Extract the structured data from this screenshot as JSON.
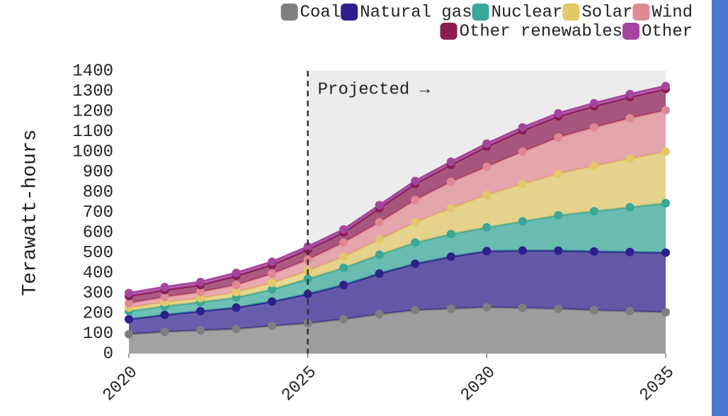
{
  "chart_data": {
    "type": "stacked_area",
    "y_label": "Terawatt-hours",
    "annotation": "Projected →",
    "projection_start": 2025,
    "x": [
      2020,
      2021,
      2022,
      2023,
      2024,
      2025,
      2026,
      2027,
      2028,
      2029,
      2030,
      2031,
      2032,
      2033,
      2034,
      2035
    ],
    "xlim": [
      2020,
      2035
    ],
    "xticks": [
      2020,
      2025,
      2030,
      2035
    ],
    "ylim": [
      0,
      1400
    ],
    "yticks": [
      0,
      100,
      200,
      300,
      400,
      500,
      600,
      700,
      800,
      900,
      1000,
      1100,
      1200,
      1300,
      1400
    ],
    "series": [
      {
        "name": "Coal",
        "color": "#7f7f7f",
        "values": [
          96,
          108,
          115,
          122,
          137,
          150,
          170,
          195,
          215,
          222,
          230,
          226,
          222,
          215,
          210,
          205
        ]
      },
      {
        "name": "Natural gas",
        "color": "#2e1f8c",
        "values": [
          74,
          84,
          95,
          106,
          121,
          145,
          170,
          202,
          230,
          258,
          278,
          284,
          288,
          291,
          293,
          295
        ]
      },
      {
        "name": "Nuclear",
        "color": "#38a898",
        "values": [
          40,
          43,
          45,
          50,
          60,
          75,
          85,
          93,
          105,
          112,
          117,
          145,
          175,
          199,
          222,
          245
        ]
      },
      {
        "name": "Solar",
        "color": "#e2c866",
        "values": [
          18,
          20,
          20,
          27,
          32,
          40,
          55,
          75,
          100,
          128,
          160,
          185,
          205,
          225,
          240,
          255
        ]
      },
      {
        "name": "Wind",
        "color": "#e08994",
        "values": [
          22,
          25,
          30,
          35,
          45,
          55,
          70,
          85,
          110,
          130,
          140,
          160,
          180,
          190,
          200,
          205
        ]
      },
      {
        "name": "Other renewables",
        "color": "#8a1c50",
        "values": [
          35,
          35,
          35,
          45,
          45,
          50,
          50,
          70,
          80,
          85,
          100,
          105,
          105,
          105,
          105,
          105
        ]
      },
      {
        "name": "Other",
        "color": "#a6459f",
        "values": [
          15,
          15,
          15,
          15,
          15,
          15,
          15,
          15,
          15,
          15,
          15,
          15,
          15,
          15,
          15,
          15
        ]
      }
    ]
  }
}
